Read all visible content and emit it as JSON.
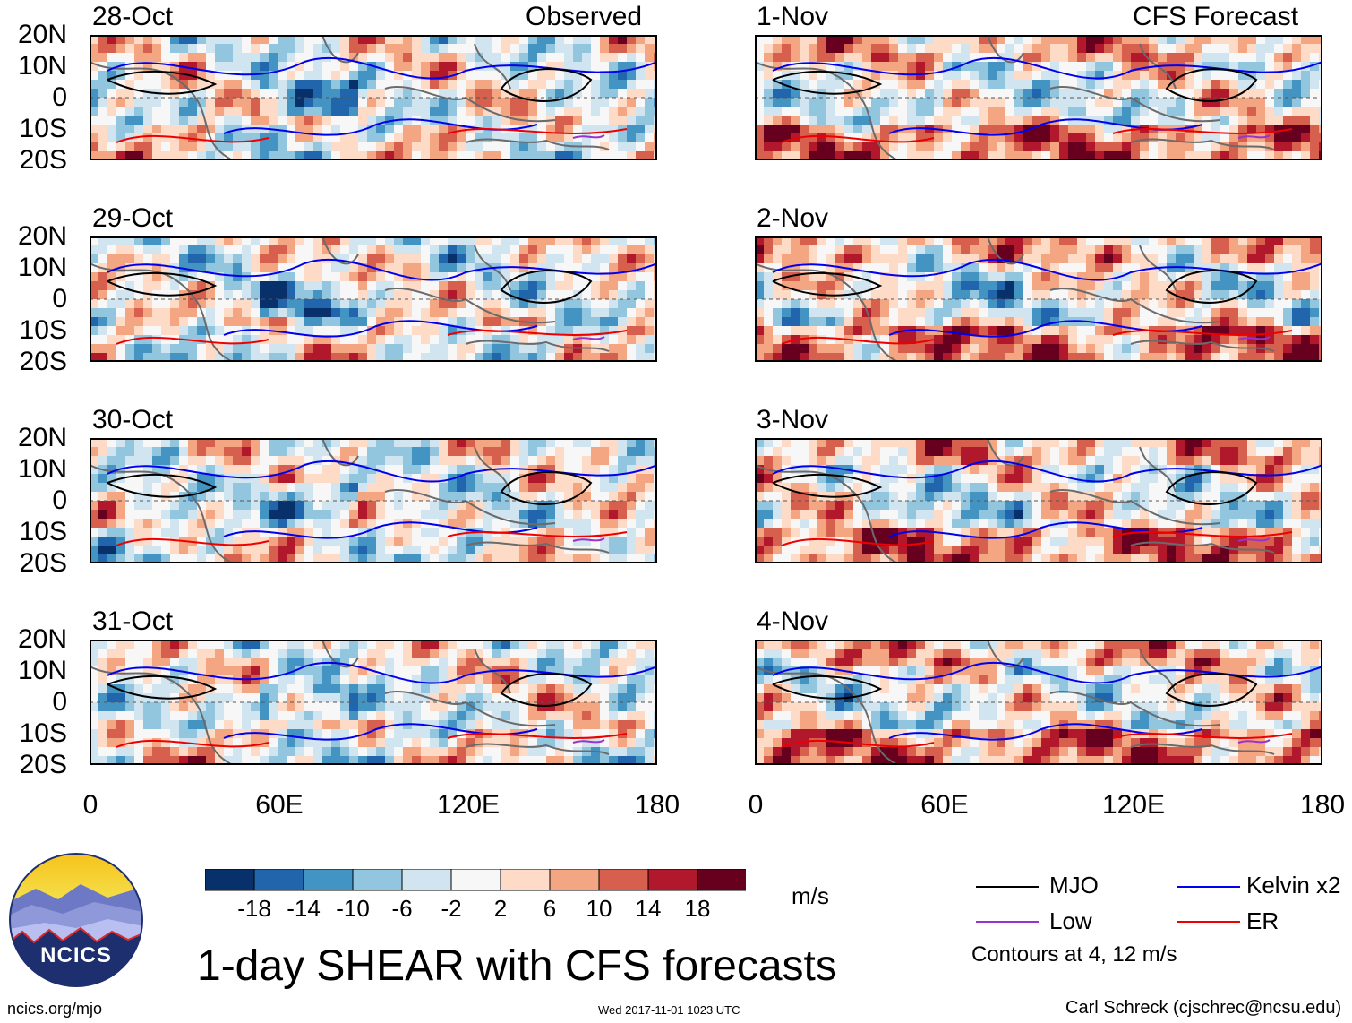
{
  "chart_data": {
    "type": "heatmap",
    "title": "1-day SHEAR with CFS forecasts",
    "units": "m/s",
    "columns": [
      {
        "label": "Observed",
        "panels": [
          "28-Oct",
          "29-Oct",
          "30-Oct",
          "31-Oct"
        ]
      },
      {
        "label": "CFS Forecast",
        "panels": [
          "1-Nov",
          "2-Nov",
          "3-Nov",
          "4-Nov"
        ]
      }
    ],
    "y_ticks": [
      "20N",
      "10N",
      "0",
      "10S",
      "20S"
    ],
    "x_ticks": [
      "0",
      "60E",
      "120E",
      "180"
    ],
    "xlim": [
      0,
      180
    ],
    "ylim": [
      -20,
      20
    ],
    "colorbar": {
      "levels": [
        "-18",
        "-14",
        "-10",
        "-6",
        "-2",
        "2",
        "6",
        "10",
        "14",
        "18"
      ],
      "colors": [
        "#08306b",
        "#2166ac",
        "#4393c3",
        "#92c5de",
        "#d1e5f0",
        "#f7f7f7",
        "#fddbc7",
        "#f4a582",
        "#d6604d",
        "#b2182b",
        "#67001f"
      ]
    },
    "legend": [
      {
        "label": "MJO",
        "color": "#000000"
      },
      {
        "label": "Kelvin x2",
        "color": "#0000ee"
      },
      {
        "label": "Low",
        "color": "#9933cc"
      },
      {
        "label": "ER",
        "color": "#ee0000"
      }
    ],
    "contour_note": "Contours at 4, 12 m/s"
  },
  "footer": {
    "left": "ncics.org/mjo",
    "center": "Wed 2017-11-01 1023 UTC",
    "right": "Carl Schreck (cjschrec@ncsu.edu)"
  },
  "logo_text": "NCICS"
}
